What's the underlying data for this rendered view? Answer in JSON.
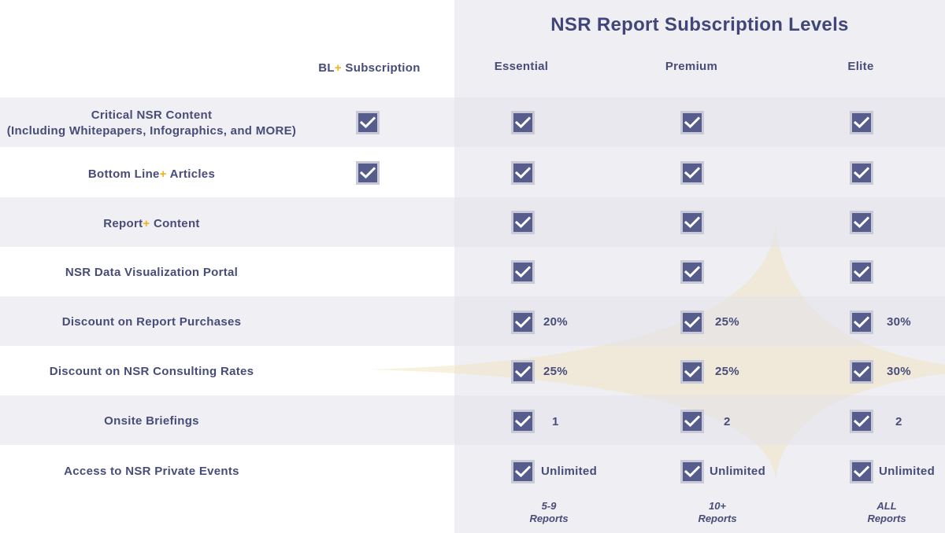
{
  "title": "NSR Report Subscription Levels",
  "columns": {
    "bl": {
      "prefix": "BL",
      "plus": "+",
      "suffix": " Subscription"
    },
    "tiers": [
      "Essential",
      "Premium",
      "Elite"
    ]
  },
  "rows": [
    {
      "label_line1": "Critical NSR Content",
      "label_line2": "(Including Whitepapers, Infographics, and MORE)",
      "bl": true,
      "values": [
        "",
        "",
        ""
      ]
    },
    {
      "label_pre": "Bottom Line",
      "label_plus": "+",
      "label_post": " Articles",
      "bl": true,
      "values": [
        "",
        "",
        ""
      ]
    },
    {
      "label_pre": "Report",
      "label_plus": "+",
      "label_post": " Content",
      "bl": false,
      "values": [
        "",
        "",
        ""
      ]
    },
    {
      "label": "NSR Data Visualization Portal",
      "bl": false,
      "values": [
        "",
        "",
        ""
      ]
    },
    {
      "label": "Discount on Report Purchases",
      "bl": false,
      "values": [
        "20%",
        "25%",
        "30%"
      ]
    },
    {
      "label": "Discount on NSR Consulting Rates",
      "bl": false,
      "values": [
        "25%",
        "25%",
        "30%"
      ]
    },
    {
      "label": "Onsite Briefings",
      "bl": false,
      "values": [
        "1",
        "2",
        "2"
      ]
    },
    {
      "label": "Access to NSR Private Events",
      "bl": false,
      "values": [
        "Unlimited",
        "Unlimited",
        "Unlimited"
      ]
    }
  ],
  "footer": [
    {
      "line1": "5-9",
      "line2": "Reports"
    },
    {
      "line1": "10+",
      "line2": "Reports"
    },
    {
      "line1": "ALL",
      "line2": "Reports"
    }
  ],
  "colors": {
    "accent_plus": "#f2b31a",
    "checkbox_fill": "#565c8c",
    "text": "#474c78"
  },
  "icons": {
    "check": "checkbox-checked-icon",
    "background": "four-point-star-icon"
  }
}
